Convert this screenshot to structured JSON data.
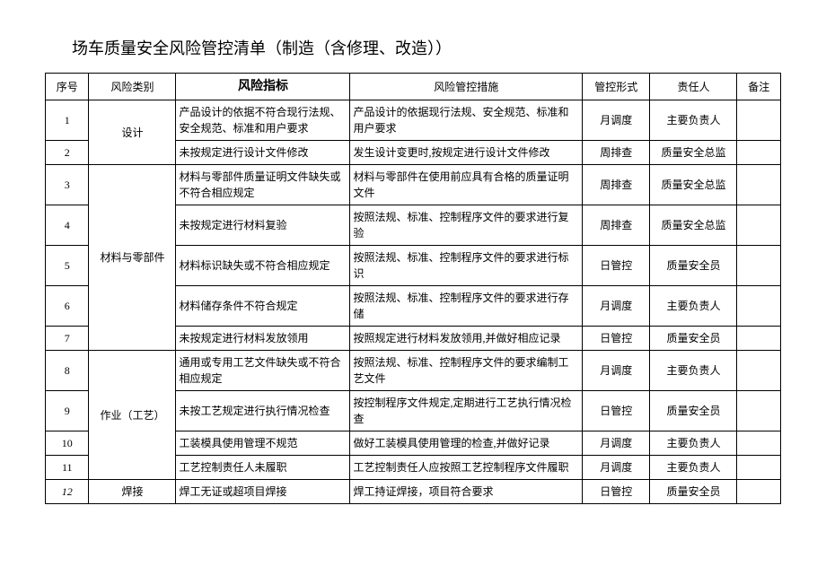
{
  "title": "场车质量安全风险管控清单（制造（含修理、改造））",
  "headers": {
    "seq": "序号",
    "category": "风险类别",
    "indicator": "风险指标",
    "measure": "风险管控措施",
    "form": "管控形式",
    "person": "责任人",
    "note": "备注"
  },
  "groups": [
    {
      "category": "设计",
      "rows": [
        {
          "seq": "1",
          "indicator": "产品设计的依据不符合现行法规、安全规范、标准和用户要求",
          "measure": "产品设计的依据现行法规、安全规范、标准和用户要求",
          "form": "月调度",
          "person": "主要负责人",
          "note": ""
        },
        {
          "seq": "2",
          "indicator": "未按规定进行设计文件修改",
          "measure": "发生设计变更时,按规定进行设计文件修改",
          "form": "周排查",
          "person": "质量安全总监",
          "note": ""
        }
      ]
    },
    {
      "category": "材料与零部件",
      "rows": [
        {
          "seq": "3",
          "indicator": "材料与零部件质量证明文件缺失或不符合相应规定",
          "measure": "材料与零部件在使用前应具有合格的质量证明文件",
          "form": "周排查",
          "person": "质量安全总监",
          "note": ""
        },
        {
          "seq": "4",
          "indicator": "未按规定进行材料复验",
          "measure": "按照法规、标准、控制程序文件的要求进行复验",
          "form": "周排查",
          "person": "质量安全总监",
          "note": ""
        },
        {
          "seq": "5",
          "indicator": "材料标识缺失或不符合相应规定",
          "measure": "按照法规、标准、控制程序文件的要求进行标识",
          "form": "日管控",
          "person": "质量安全员",
          "note": ""
        },
        {
          "seq": "6",
          "indicator": "材料储存条件不符合规定",
          "measure": "按照法规、标准、控制程序文件的要求进行存储",
          "form": "月调度",
          "person": "主要负责人",
          "note": ""
        },
        {
          "seq": "7",
          "indicator": "未按规定进行材料发放领用",
          "measure": "按照规定进行材料发放领用,并做好相应记录",
          "form": "日管控",
          "person": "质量安全员",
          "note": ""
        }
      ]
    },
    {
      "category": "作业（工艺）",
      "rows": [
        {
          "seq": "8",
          "indicator": "通用或专用工艺文件缺失或不符合相应规定",
          "measure": "按照法规、标准、控制程序文件的要求编制工艺文件",
          "form": "月调度",
          "person": "主要负责人",
          "note": ""
        },
        {
          "seq": "9",
          "indicator": "未按工艺规定进行执行情况检查",
          "measure": "按控制程序文件规定,定期进行工艺执行情况检查",
          "form": "日管控",
          "person": "质量安全员",
          "note": ""
        },
        {
          "seq": "10",
          "indicator": "工装模具使用管理不规范",
          "measure": "做好工装模具使用管理的检查,并做好记录",
          "form": "月调度",
          "person": "主要负责人",
          "note": ""
        },
        {
          "seq": "11",
          "indicator": "工艺控制责任人未履职",
          "measure": "工艺控制责任人应按照工艺控制程序文件履职",
          "form": "月调度",
          "person": "主要负责人",
          "note": ""
        }
      ]
    },
    {
      "category": "焊接",
      "rows": [
        {
          "seq": "12",
          "seqItalic": true,
          "indicator": "焊工无证或超项目焊接",
          "measure": "焊工持证焊接，项目符合要求",
          "form": "日管控",
          "person": "质量安全员",
          "note": ""
        }
      ]
    }
  ]
}
